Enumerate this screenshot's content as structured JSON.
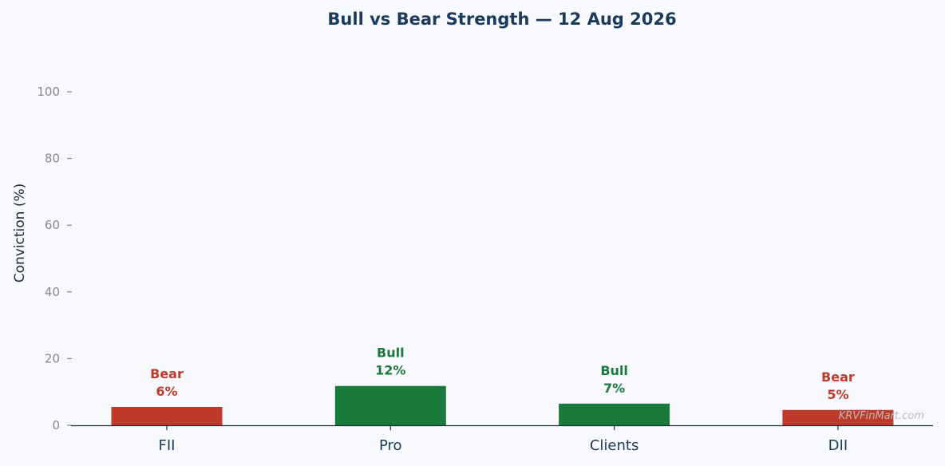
{
  "chart_data": {
    "type": "bar",
    "title": "Bull vs Bear Strength — 12 Aug 2026",
    "xlabel": "",
    "ylabel": "Conviction (%)",
    "ylim": [
      0,
      100
    ],
    "yticks": [
      0,
      20,
      40,
      60,
      80,
      100
    ],
    "categories": [
      "FII",
      "Pro",
      "Clients",
      "DII"
    ],
    "values": [
      5.5,
      11.8,
      6.5,
      4.6
    ],
    "sentiment": [
      "Bear",
      "Bull",
      "Bull",
      "Bear"
    ],
    "value_labels": [
      "6%",
      "12%",
      "7%",
      "5%"
    ],
    "grid": false,
    "legend": "none"
  },
  "watermark": "KRVFinMart.com",
  "colors": {
    "bull": "#1a7a3c",
    "bear": "#c0392b",
    "title": "#1b3a5c",
    "axis": "#1b2b3c",
    "tick_label": "#888888",
    "watermark": "#bbbbbb"
  }
}
